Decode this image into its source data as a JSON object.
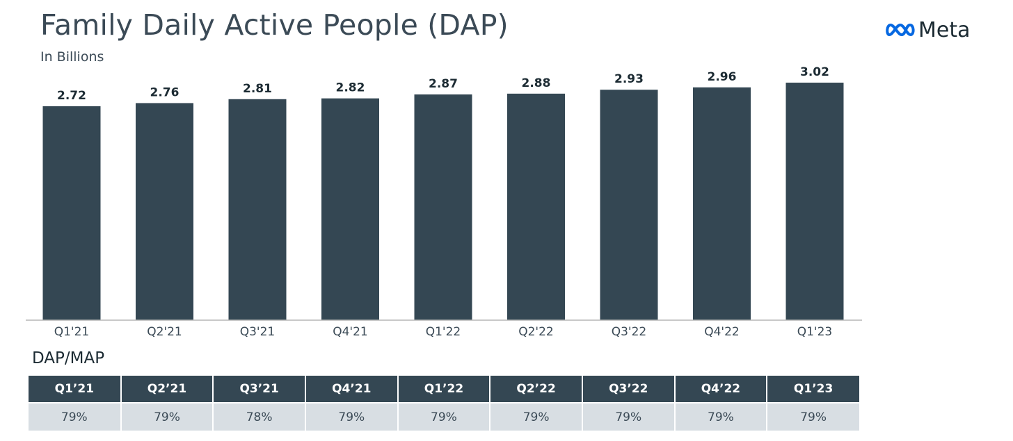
{
  "header": {
    "title": "Family Daily Active People (DAP)",
    "subtitle": "In Billions",
    "logo_text": "Meta",
    "logo_icon": "meta-infinity-icon"
  },
  "colors": {
    "bar": "#344753",
    "table_header_bg": "#344753",
    "table_cell_bg": "#d8dee3",
    "axis_line": "#b5b5b5",
    "logo_blue": "#0668e1"
  },
  "chart_data": {
    "type": "bar",
    "categories": [
      "Q1'21",
      "Q2'21",
      "Q3'21",
      "Q4'21",
      "Q1'22",
      "Q2'22",
      "Q3'22",
      "Q4'22",
      "Q1'23"
    ],
    "values": [
      2.72,
      2.76,
      2.81,
      2.82,
      2.87,
      2.88,
      2.93,
      2.96,
      3.02
    ],
    "value_labels": [
      "2.72",
      "2.76",
      "2.81",
      "2.82",
      "2.87",
      "2.88",
      "2.93",
      "2.96",
      "3.02"
    ],
    "title": "Family Daily Active People (DAP)",
    "subtitle": "In Billions",
    "xlabel": "",
    "ylabel": "",
    "ylim": [
      0,
      3.02
    ],
    "grid": false
  },
  "dapmap": {
    "title": "DAP/MAP",
    "headers": [
      "Q1’21",
      "Q2’21",
      "Q3’21",
      "Q4’21",
      "Q1’22",
      "Q2’22",
      "Q3’22",
      "Q4’22",
      "Q1’23"
    ],
    "values": [
      "79%",
      "79%",
      "78%",
      "79%",
      "79%",
      "79%",
      "79%",
      "79%",
      "79%"
    ]
  }
}
